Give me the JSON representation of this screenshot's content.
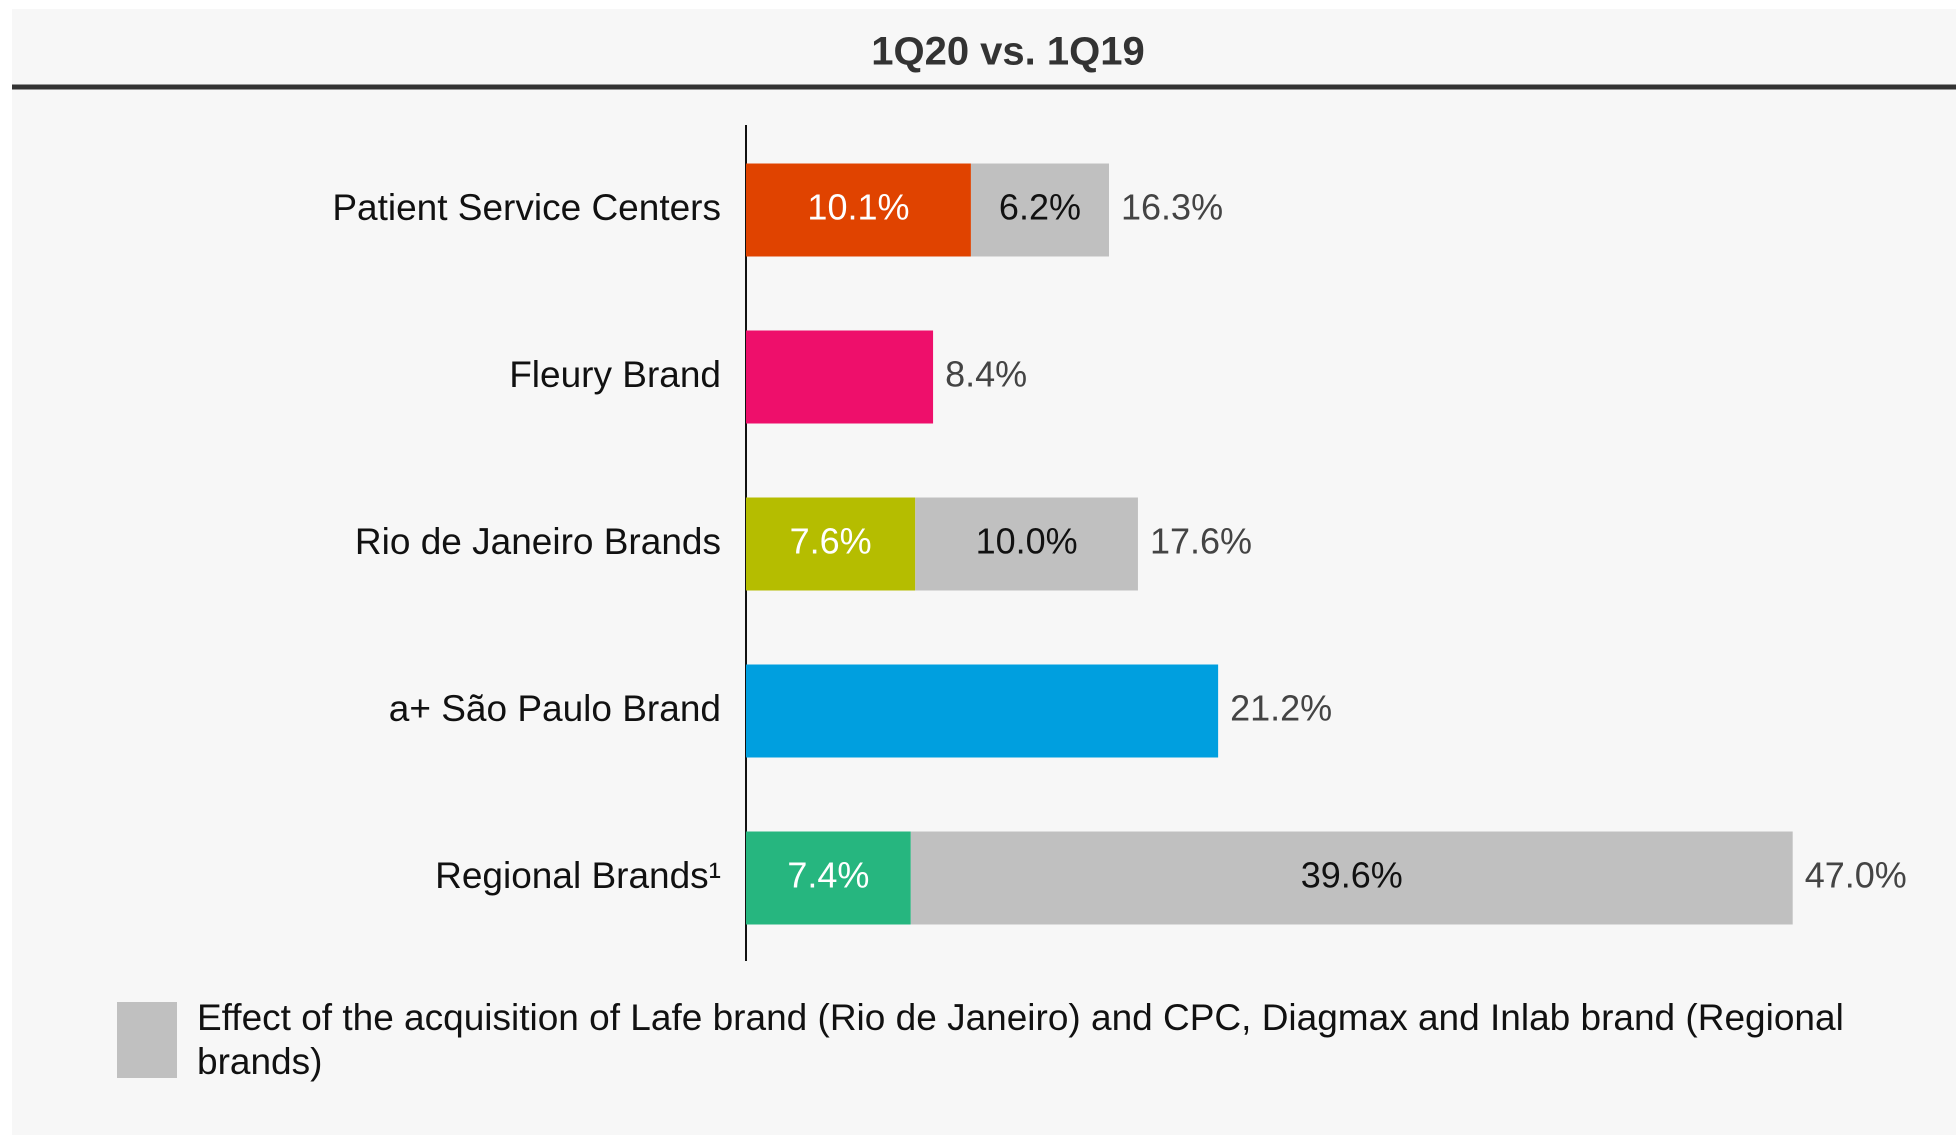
{
  "chart_data": {
    "type": "stacked-hbar",
    "title": "1Q20 vs. 1Q19",
    "categories": [
      "Patient Service Centers",
      "Fleury Brand",
      "Rio de Janeiro Brands",
      "a+ São Paulo Brand",
      "Regional Brands¹"
    ],
    "series": [
      {
        "values": [
          10.1,
          8.4,
          7.6,
          21.2,
          7.4
        ],
        "value_labels": [
          "10.1%",
          null,
          "7.6%",
          null,
          "7.4%"
        ],
        "colors": [
          "#e04300",
          "#ee0f6b",
          "#b5bd00",
          "#009fdf",
          "#26b67f"
        ]
      },
      {
        "name": "Effect of the acquisition of Lafe brand (Rio de Janeiro) and CPC, Diagmax and Inlab brand (Regional brands)",
        "color": "#c0c0c0",
        "values": [
          6.2,
          null,
          10.0,
          null,
          39.6
        ],
        "value_labels": [
          "6.2%",
          null,
          "10.0%",
          null,
          "39.6%"
        ]
      }
    ],
    "totals": [
      16.3,
      8.4,
      17.6,
      21.2,
      47.0
    ],
    "total_labels": [
      "16.3%",
      "8.4%",
      "17.6%",
      "21.2%",
      "47.0%"
    ]
  }
}
